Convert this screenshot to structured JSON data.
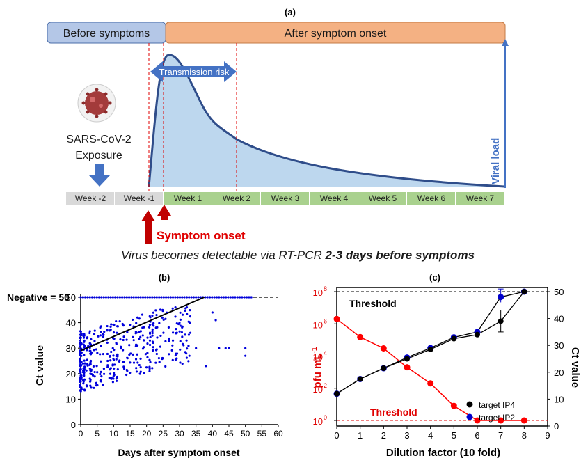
{
  "panel_a": {
    "label": "(a)",
    "before_banner": "Before symptoms",
    "after_banner": "After symptom onset",
    "transmission": "Transmission risk",
    "virus_line1": "SARS-CoV-2",
    "virus_line2": "Exposure",
    "viral_load": "Viral load",
    "weeks": [
      "Week -2",
      "Week -1",
      "Week 1",
      "Week 2",
      "Week 3",
      "Week 4",
      "Week 5",
      "Week 6",
      "Week 7"
    ],
    "onset_label": "Symptom onset",
    "caption_plain": "Virus becomes detectable via RT-PCR ",
    "caption_bold": "2-3 days before symptoms",
    "colors": {
      "before_fill": "#b4c7e7",
      "after_fill": "#f4b183",
      "curve": "#2f4d8a",
      "area": "#bdd7ee",
      "arrow": "#4472c4",
      "onset_arrow": "#c00000",
      "grey_week": "#d9d9d9",
      "green_week": "#a9d18e"
    }
  },
  "panel_b": {
    "label": "(b)",
    "negative_label": "Negative = 50",
    "ylabel": "Ct value",
    "xlabel": "Days after symptom onset",
    "x_ticks": [
      "0",
      "5",
      "10",
      "15",
      "20",
      "25",
      "30",
      "35",
      "40",
      "45",
      "50",
      "55",
      "60"
    ],
    "y_ticks": [
      "0",
      "10",
      "20",
      "30",
      "40",
      "50"
    ]
  },
  "panel_c": {
    "label": "(c)",
    "threshold_top": "Threshold",
    "threshold_bottom": "Threshold",
    "ylabel_left": "pfu mL",
    "ylabel_left_sup": "-1",
    "ylabel_right": "Ct value",
    "xlabel": "Dilution factor (10 fold)",
    "x_ticks": [
      "0",
      "1",
      "2",
      "3",
      "4",
      "5",
      "6",
      "7",
      "8",
      "9"
    ],
    "left_tick_base": [
      "10",
      "10",
      "10",
      "10",
      "10"
    ],
    "left_tick_exp": [
      "0",
      "2",
      "4",
      "6",
      "8"
    ],
    "right_ticks": [
      "0",
      "10",
      "20",
      "30",
      "40",
      "50"
    ],
    "legend": [
      "target IP4",
      "target IP2"
    ]
  },
  "chart_data": [
    {
      "type": "area",
      "title": "(a)",
      "categories": [
        "Week -2",
        "Week -1",
        "Week 1",
        "Week 2",
        "Week 3",
        "Week 4",
        "Week 5",
        "Week 6",
        "Week 7"
      ],
      "series": [
        {
          "name": "Viral load",
          "x_weeks": [
            1.9,
            2.15,
            2.5,
            3.2,
            4,
            5,
            6,
            7,
            8
          ],
          "values": [
            0,
            0.85,
            1.0,
            0.6,
            0.36,
            0.2,
            0.11,
            0.05,
            0.01
          ]
        }
      ],
      "ylabel": "Viral load"
    },
    {
      "type": "scatter",
      "title": "(b)",
      "xlabel": "Days after symptom onset",
      "ylabel": "Ct value",
      "xlim": [
        0,
        60
      ],
      "ylim": [
        0,
        50
      ],
      "negative_line_y": 50,
      "trend_line": {
        "x": [
          0,
          37.5
        ],
        "y": [
          29,
          50
        ]
      },
      "points_summary": "several hundred points, days 0-52, Ct mostly 15-45; many at Ct = 50 (negative)"
    },
    {
      "type": "line",
      "title": "(c)",
      "xlabel": "Dilution factor (10 fold)",
      "xlim": [
        0,
        9
      ],
      "x": [
        0,
        1,
        2,
        3,
        4,
        5,
        6,
        7,
        8
      ],
      "series": [
        {
          "name": "",
          "axis": "left",
          "scale": "log",
          "unit": "pfu mL-1",
          "color": "#ff0000",
          "values": [
            2000000,
            150000,
            30000,
            2000,
            200,
            8,
            1,
            1,
            1
          ]
        },
        {
          "name": "target IP4",
          "axis": "right",
          "color": "#000000",
          "values": [
            12,
            17.5,
            21.5,
            25,
            28.5,
            32.5,
            34,
            39,
            50
          ]
        },
        {
          "name": "target IP2",
          "axis": "right",
          "color": "#0000cc",
          "values": [
            12,
            17.5,
            21.5,
            25.5,
            29,
            33,
            35,
            48,
            50
          ]
        }
      ],
      "ylim_left": [
        1,
        100000000
      ],
      "ylim_right": [
        0,
        50
      ],
      "threshold_left": 1,
      "threshold_right": 50
    }
  ]
}
